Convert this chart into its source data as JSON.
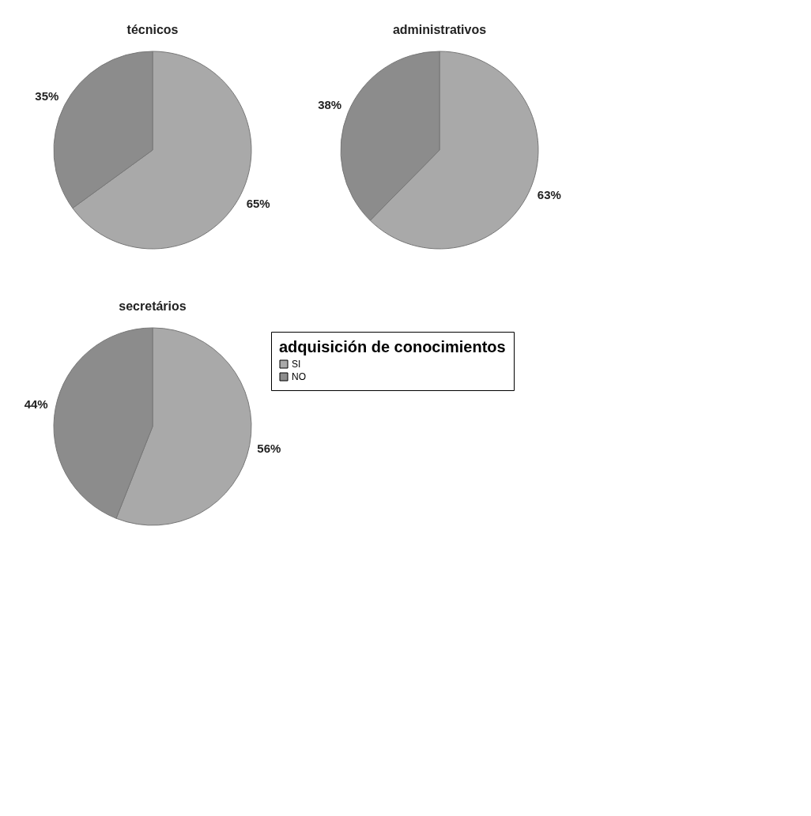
{
  "chart_data": [
    {
      "type": "pie",
      "title": "técnicos",
      "categories": [
        null,
        null
      ],
      "values": [
        65,
        35
      ],
      "colors": [
        "#a9a9a9",
        "#8c8c8c"
      ],
      "value_labels": [
        "65%",
        "35%"
      ],
      "legend": false
    },
    {
      "type": "pie",
      "title": "administrativos",
      "categories": [
        null,
        null
      ],
      "values": [
        63,
        38
      ],
      "colors": [
        "#a9a9a9",
        "#8c8c8c"
      ],
      "value_labels": [
        "63%",
        "38%"
      ],
      "legend": false
    },
    {
      "type": "pie",
      "title": "secretários",
      "categories": [
        "SI",
        "NO"
      ],
      "values": [
        56,
        44
      ],
      "colors": [
        "#a9a9a9",
        "#8c8c8c"
      ],
      "value_labels": [
        "56%",
        "44%"
      ],
      "legend": "right",
      "legend_title": "adquisición de conocimientos"
    }
  ]
}
